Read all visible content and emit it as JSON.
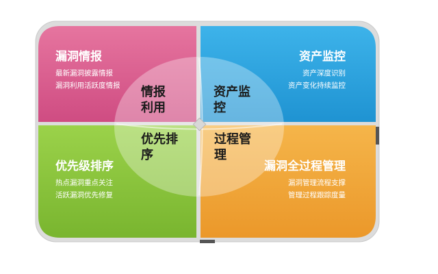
{
  "colors": {
    "top_left": "#d85a8e",
    "top_right": "#2aa3dd",
    "bottom_left": "#8cc63f",
    "bottom_right": "#f0a63a",
    "frame": "#cccccc",
    "center_overlay": "#ffffff"
  },
  "quadrants": {
    "top_left": {
      "title": "漏洞情报",
      "lines": [
        "最新漏洞披露情报",
        "漏洞利用活跃度情报"
      ]
    },
    "top_right": {
      "title": "资产监控",
      "lines": [
        "资产深度识别",
        "资产变化持续监控"
      ]
    },
    "bottom_left": {
      "title": "优先级排序",
      "lines": [
        "热点漏洞重点关注",
        "活跃漏洞优先修复"
      ]
    },
    "bottom_right": {
      "title": "漏洞全过程管理",
      "lines": [
        "漏洞管理流程支撑",
        "管理过程跟踪度量"
      ]
    }
  },
  "center": {
    "top_left": [
      "情报",
      "利用"
    ],
    "top_right": [
      "资产监",
      "控"
    ],
    "bottom_left": [
      "优先排",
      "序"
    ],
    "bottom_right": [
      "过程管",
      "理"
    ]
  }
}
